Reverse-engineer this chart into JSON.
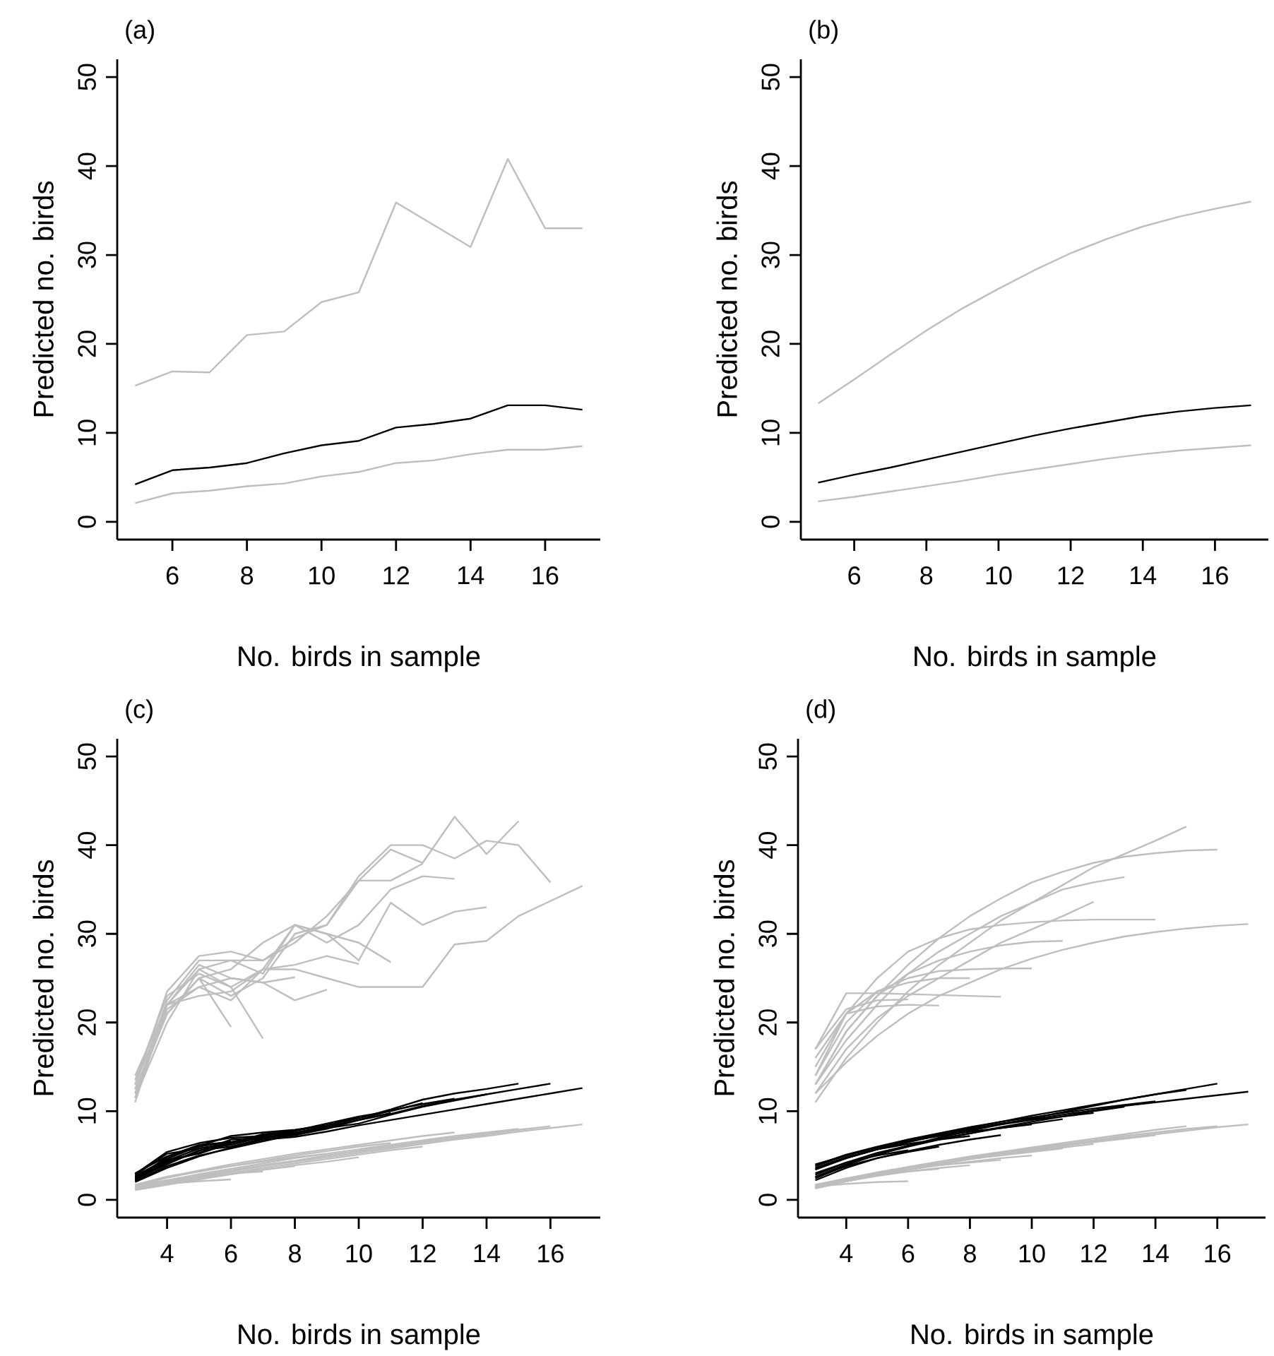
{
  "chart_data": [
    {
      "type": "line",
      "title": "(a)",
      "xlabel": "No. birds in sample",
      "ylabel": "Predicted no. birds",
      "xlim": [
        4.52,
        17.48
      ],
      "ylim": [
        -2,
        52
      ],
      "xticks": [
        6,
        8,
        10,
        12,
        14,
        16
      ],
      "yticks": [
        0,
        10,
        20,
        30,
        40,
        50
      ],
      "x": [
        5,
        6,
        7,
        8,
        9,
        10,
        11,
        12,
        13,
        14,
        15,
        16,
        17
      ],
      "series": [
        {
          "color": "#bebebe",
          "values": [
            15.3,
            16.9,
            16.8,
            21.0,
            21.4,
            24.7,
            25.8,
            35.9,
            33.4,
            30.9,
            40.8,
            33.0,
            33.0
          ]
        },
        {
          "color": "#000000",
          "values": [
            4.2,
            5.8,
            6.1,
            6.6,
            7.7,
            8.6,
            9.1,
            10.6,
            11.0,
            11.6,
            13.1,
            13.1,
            12.6
          ]
        },
        {
          "color": "#bebebe",
          "values": [
            2.1,
            3.2,
            3.5,
            4.0,
            4.3,
            5.1,
            5.6,
            6.6,
            6.9,
            7.6,
            8.1,
            8.1,
            8.5
          ]
        }
      ]
    },
    {
      "type": "line",
      "title": "(b)",
      "xlabel": "No. birds in sample",
      "ylabel": "Predicted no. birds",
      "xlim": [
        4.52,
        17.48
      ],
      "ylim": [
        -2,
        52
      ],
      "xticks": [
        6,
        8,
        10,
        12,
        14,
        16
      ],
      "yticks": [
        0,
        10,
        20,
        30,
        40,
        50
      ],
      "x": [
        5,
        6,
        7,
        8,
        9,
        10,
        11,
        12,
        13,
        14,
        15,
        16,
        17
      ],
      "series": [
        {
          "color": "#bebebe",
          "values": [
            13.3,
            16.0,
            18.8,
            21.5,
            24.0,
            26.2,
            28.3,
            30.2,
            31.8,
            33.2,
            34.3,
            35.2,
            36.0
          ]
        },
        {
          "color": "#000000",
          "values": [
            4.4,
            5.3,
            6.1,
            7.0,
            7.9,
            8.8,
            9.7,
            10.5,
            11.2,
            11.9,
            12.4,
            12.8,
            13.1
          ]
        },
        {
          "color": "#bebebe",
          "values": [
            2.3,
            2.8,
            3.4,
            4.0,
            4.6,
            5.3,
            5.9,
            6.5,
            7.1,
            7.6,
            8.0,
            8.3,
            8.6
          ]
        }
      ]
    },
    {
      "type": "line",
      "title": "(c)",
      "xlabel": "No. birds in sample",
      "ylabel": "Predicted no. birds",
      "xlim": [
        2.44,
        17.56
      ],
      "ylim": [
        -2,
        52
      ],
      "xticks": [
        4,
        6,
        8,
        10,
        12,
        14,
        16
      ],
      "yticks": [
        0,
        10,
        20,
        30,
        40,
        50
      ],
      "series": [
        {
          "color": "#bebebe",
          "x": [
            3,
            4,
            5,
            6
          ],
          "values": [
            12.5,
            21.0,
            25.0,
            19.5
          ]
        },
        {
          "color": "#bebebe",
          "x": [
            3,
            4,
            5,
            6,
            7
          ],
          "values": [
            11.5,
            20.0,
            26.0,
            24.0,
            18.2
          ]
        },
        {
          "color": "#bebebe",
          "x": [
            3,
            4,
            5,
            6,
            7,
            8
          ],
          "values": [
            13.0,
            22.0,
            26.5,
            25.0,
            24.5,
            25.1
          ]
        },
        {
          "color": "#bebebe",
          "x": [
            3,
            4,
            5,
            6,
            7,
            8,
            9
          ],
          "values": [
            12.0,
            21.5,
            24.0,
            25.0,
            24.5,
            22.5,
            23.7
          ]
        },
        {
          "color": "#bebebe",
          "x": [
            3,
            4,
            5,
            6,
            7,
            8,
            9,
            10
          ],
          "values": [
            13.5,
            23.0,
            25.5,
            24.0,
            26.0,
            26.5,
            27.5,
            26.6
          ]
        },
        {
          "color": "#bebebe",
          "x": [
            3,
            4,
            5,
            6,
            7,
            8,
            9,
            10,
            11
          ],
          "values": [
            12.0,
            22.5,
            27.0,
            27.0,
            25.5,
            31.0,
            30.0,
            29.0,
            26.8
          ]
        },
        {
          "color": "#bebebe",
          "x": [
            3,
            4,
            5,
            6,
            7,
            8,
            9,
            10,
            11,
            12
          ],
          "values": [
            13.0,
            23.5,
            27.5,
            28.0,
            27.0,
            29.5,
            31.0,
            36.0,
            36.0,
            37.9
          ]
        },
        {
          "color": "#bebebe",
          "x": [
            3,
            4,
            5,
            6,
            7,
            8,
            9,
            10,
            11,
            12,
            13
          ],
          "values": [
            12.5,
            21.0,
            25.0,
            26.0,
            29.0,
            31.0,
            29.0,
            31.0,
            35.0,
            36.5,
            36.2
          ]
        },
        {
          "color": "#bebebe",
          "x": [
            3,
            4,
            5,
            6,
            7,
            8,
            9,
            10,
            11,
            12,
            13,
            14
          ],
          "values": [
            11.0,
            22.0,
            24.0,
            22.5,
            26.0,
            31.0,
            30.0,
            27.0,
            33.5,
            31.0,
            32.5,
            33.0
          ]
        },
        {
          "color": "#bebebe",
          "x": [
            3,
            4,
            5,
            6,
            7,
            8,
            9,
            10,
            11,
            12,
            13,
            14,
            15
          ],
          "values": [
            14.0,
            22.0,
            26.0,
            27.0,
            27.0,
            29.0,
            32.0,
            36.0,
            39.5,
            38.0,
            43.2,
            39.0,
            42.7
          ]
        },
        {
          "color": "#bebebe",
          "x": [
            3,
            4,
            5,
            6,
            7,
            8,
            9,
            10,
            11,
            12,
            13,
            14,
            15,
            16
          ],
          "values": [
            12.0,
            21.0,
            25.0,
            23.0,
            25.0,
            30.0,
            31.0,
            36.5,
            40.0,
            40.0,
            38.5,
            40.5,
            40.0,
            35.8
          ]
        },
        {
          "color": "#bebebe",
          "x": [
            3,
            4,
            5,
            6,
            7,
            8,
            9,
            10,
            11,
            12,
            13,
            14,
            15,
            16,
            17
          ],
          "values": [
            11.5,
            22.0,
            23.0,
            23.5,
            26.0,
            26.0,
            25.0,
            24.0,
            24.0,
            24.0,
            28.8,
            29.2,
            32.0,
            33.7,
            35.4
          ]
        },
        {
          "color": "#000000",
          "x": [
            3,
            4,
            5,
            6
          ],
          "values": [
            2.4,
            4.8,
            6.0,
            6.6
          ]
        },
        {
          "color": "#000000",
          "x": [
            3,
            4,
            5,
            6,
            7
          ],
          "values": [
            2.8,
            5.2,
            5.8,
            6.4,
            7.2
          ]
        },
        {
          "color": "#000000",
          "x": [
            3,
            4,
            5,
            6,
            7,
            8
          ],
          "values": [
            2.2,
            4.2,
            5.5,
            6.8,
            7.0,
            7.6
          ]
        },
        {
          "color": "#000000",
          "x": [
            3,
            4,
            5,
            6,
            7,
            8,
            9
          ],
          "values": [
            3.0,
            4.9,
            6.2,
            6.5,
            7.3,
            7.6,
            8.2
          ]
        },
        {
          "color": "#000000",
          "x": [
            3,
            4,
            5,
            6,
            7,
            8,
            9,
            10
          ],
          "values": [
            2.6,
            4.5,
            5.2,
            6.4,
            7.4,
            7.8,
            8.4,
            9.3
          ]
        },
        {
          "color": "#000000",
          "x": [
            3,
            4,
            5,
            6,
            7,
            8,
            9,
            10,
            11
          ],
          "values": [
            2.3,
            4.0,
            5.6,
            6.0,
            6.9,
            7.5,
            8.3,
            9.0,
            9.8
          ]
        },
        {
          "color": "#000000",
          "x": [
            3,
            4,
            5,
            6,
            7,
            8,
            9,
            10,
            11,
            12
          ],
          "values": [
            2.9,
            5.4,
            6.4,
            7.0,
            7.2,
            7.8,
            8.6,
            9.4,
            10.0,
            10.9
          ]
        },
        {
          "color": "#000000",
          "x": [
            3,
            4,
            5,
            6,
            7,
            8,
            9,
            10,
            11,
            12,
            13
          ],
          "values": [
            2.5,
            4.4,
            5.8,
            6.2,
            7.1,
            7.3,
            8.0,
            9.0,
            10.1,
            10.8,
            11.4
          ]
        },
        {
          "color": "#000000",
          "x": [
            3,
            4,
            5,
            6,
            7,
            8,
            9,
            10,
            11,
            12,
            13,
            14
          ],
          "values": [
            2.1,
            3.8,
            5.0,
            5.8,
            6.6,
            7.4,
            8.1,
            8.6,
            9.6,
            10.5,
            11.2,
            11.9
          ]
        },
        {
          "color": "#000000",
          "x": [
            3,
            4,
            5,
            6,
            7,
            8,
            9,
            10,
            11,
            12,
            13,
            14,
            15
          ],
          "values": [
            2.7,
            4.6,
            6.1,
            7.2,
            7.6,
            7.9,
            8.4,
            9.2,
            10.2,
            11.3,
            12.0,
            12.5,
            13.1
          ]
        },
        {
          "color": "#000000",
          "x": [
            3,
            4,
            5,
            6,
            7,
            8,
            9,
            10,
            11,
            12,
            13,
            14,
            15,
            16
          ],
          "values": [
            2.4,
            4.3,
            5.3,
            6.5,
            7.0,
            7.3,
            8.2,
            9.0,
            9.7,
            10.6,
            11.3,
            11.9,
            12.5,
            13.1
          ]
        },
        {
          "color": "#000000",
          "x": [
            3,
            4,
            5,
            6,
            7,
            8,
            9,
            10,
            11,
            12,
            13,
            14,
            15,
            16,
            17
          ],
          "values": [
            2.0,
            3.6,
            4.9,
            5.9,
            6.8,
            7.1,
            7.7,
            8.4,
            9.0,
            9.6,
            10.2,
            10.8,
            11.4,
            12.0,
            12.6
          ]
        },
        {
          "color": "#bebebe",
          "x": [
            3,
            4,
            5,
            6
          ],
          "values": [
            1.4,
            1.8,
            2.1,
            2.3
          ]
        },
        {
          "color": "#bebebe",
          "x": [
            3,
            4,
            5,
            6,
            7
          ],
          "values": [
            1.6,
            2.2,
            2.6,
            3.0,
            3.2
          ]
        },
        {
          "color": "#bebebe",
          "x": [
            3,
            4,
            5,
            6,
            7,
            8
          ],
          "values": [
            1.3,
            1.9,
            2.4,
            2.9,
            3.4,
            3.8
          ]
        },
        {
          "color": "#bebebe",
          "x": [
            3,
            4,
            5,
            6,
            7,
            8,
            9
          ],
          "values": [
            1.7,
            2.6,
            3.2,
            3.8,
            4.3,
            4.8,
            5.2
          ]
        },
        {
          "color": "#bebebe",
          "x": [
            3,
            4,
            5,
            6,
            7,
            8,
            9,
            10
          ],
          "values": [
            1.1,
            1.7,
            2.3,
            2.9,
            3.4,
            3.9,
            4.3,
            4.8
          ]
        },
        {
          "color": "#bebebe",
          "x": [
            3,
            4,
            5,
            6,
            7,
            8,
            9,
            10,
            11
          ],
          "values": [
            1.6,
            2.5,
            3.2,
            3.8,
            4.4,
            5.0,
            5.5,
            6.0,
            6.4
          ]
        },
        {
          "color": "#bebebe",
          "x": [
            3,
            4,
            5,
            6,
            7,
            8,
            9,
            10,
            11,
            12
          ],
          "values": [
            1.2,
            1.8,
            2.4,
            3.0,
            3.6,
            4.1,
            4.6,
            5.1,
            5.6,
            6.0
          ]
        },
        {
          "color": "#bebebe",
          "x": [
            3,
            4,
            5,
            6,
            7,
            8,
            9,
            10,
            11,
            12,
            13
          ],
          "values": [
            1.7,
            2.6,
            3.3,
            4.0,
            4.6,
            5.2,
            5.7,
            6.2,
            6.7,
            7.2,
            7.6
          ]
        },
        {
          "color": "#bebebe",
          "x": [
            3,
            4,
            5,
            6,
            7,
            8,
            9,
            10,
            11,
            12,
            13,
            14
          ],
          "values": [
            1.4,
            2.0,
            2.7,
            3.3,
            3.9,
            4.4,
            5.0,
            5.5,
            6.0,
            6.5,
            7.0,
            7.4
          ]
        },
        {
          "color": "#bebebe",
          "x": [
            3,
            4,
            5,
            6,
            7,
            8,
            9,
            10,
            11,
            12,
            13,
            14,
            15
          ],
          "values": [
            1.5,
            2.2,
            2.9,
            3.5,
            4.1,
            4.7,
            5.2,
            5.7,
            6.2,
            6.7,
            7.2,
            7.6,
            8.0
          ]
        },
        {
          "color": "#bebebe",
          "x": [
            3,
            4,
            5,
            6,
            7,
            8,
            9,
            10,
            11,
            12,
            13,
            14,
            15,
            16
          ],
          "values": [
            1.3,
            2.0,
            2.7,
            3.3,
            3.9,
            4.4,
            5.0,
            5.5,
            6.0,
            6.5,
            7.0,
            7.4,
            7.9,
            8.3
          ]
        },
        {
          "color": "#bebebe",
          "x": [
            3,
            4,
            5,
            6,
            7,
            8,
            9,
            10,
            11,
            12,
            13,
            14,
            15,
            16,
            17
          ],
          "values": [
            1.2,
            1.9,
            2.6,
            3.2,
            3.8,
            4.3,
            4.8,
            5.3,
            5.8,
            6.3,
            6.8,
            7.2,
            7.7,
            8.1,
            8.5
          ]
        }
      ]
    },
    {
      "type": "line",
      "title": "(d)",
      "xlabel": "No. birds in sample",
      "ylabel": "Predicted no. birds",
      "xlim": [
        2.44,
        17.56
      ],
      "ylim": [
        -2,
        52
      ],
      "xticks": [
        4,
        6,
        8,
        10,
        12,
        14,
        16
      ],
      "yticks": [
        0,
        10,
        20,
        30,
        40,
        50
      ],
      "series": [
        {
          "color": "#bebebe",
          "x": [
            3,
            4,
            5,
            6
          ],
          "values": [
            17.0,
            21.5,
            22.5,
            22.6
          ]
        },
        {
          "color": "#bebebe",
          "x": [
            3,
            4,
            5,
            6,
            7
          ],
          "values": [
            16.0,
            21.0,
            21.8,
            22.0,
            21.9
          ]
        },
        {
          "color": "#bebebe",
          "x": [
            3,
            4,
            5,
            6,
            7,
            8
          ],
          "values": [
            15.0,
            21.0,
            23.5,
            24.5,
            25.0,
            25.0
          ]
        },
        {
          "color": "#bebebe",
          "x": [
            3,
            4,
            5,
            6,
            7,
            8,
            9
          ],
          "values": [
            17.0,
            23.3,
            23.3,
            23.2,
            23.1,
            23.0,
            22.9
          ]
        },
        {
          "color": "#bebebe",
          "x": [
            3,
            4,
            5,
            6,
            7,
            8,
            9,
            10
          ],
          "values": [
            14.0,
            20.0,
            23.5,
            25.0,
            25.8,
            26.0,
            26.1,
            26.1
          ]
        },
        {
          "color": "#bebebe",
          "x": [
            3,
            4,
            5,
            6,
            7,
            8,
            9,
            10,
            11
          ],
          "values": [
            13.0,
            19.0,
            23.0,
            25.5,
            27.0,
            28.0,
            28.7,
            29.1,
            29.2
          ]
        },
        {
          "color": "#bebebe",
          "x": [
            3,
            4,
            5,
            6,
            7,
            8,
            9,
            10,
            11,
            12
          ],
          "values": [
            12.0,
            17.0,
            20.5,
            23.0,
            25.0,
            27.0,
            29.0,
            30.5,
            32.0,
            33.6
          ]
        },
        {
          "color": "#bebebe",
          "x": [
            3,
            4,
            5,
            6,
            7,
            8,
            9,
            10,
            11,
            12,
            13
          ],
          "values": [
            13.0,
            18.0,
            22.0,
            25.5,
            28.0,
            30.0,
            32.0,
            33.5,
            35.0,
            35.8,
            36.4
          ]
        },
        {
          "color": "#bebebe",
          "x": [
            3,
            4,
            5,
            6,
            7,
            8,
            9,
            10,
            11,
            12,
            13,
            14
          ],
          "values": [
            14.0,
            21.0,
            25.0,
            28.0,
            29.5,
            30.5,
            31.0,
            31.3,
            31.5,
            31.6,
            31.6,
            31.6
          ]
        },
        {
          "color": "#bebebe",
          "x": [
            3,
            4,
            5,
            6,
            7,
            8,
            9,
            10,
            11,
            12,
            13,
            14,
            15
          ],
          "values": [
            11.0,
            16.0,
            20.0,
            23.5,
            26.5,
            29.0,
            31.5,
            33.5,
            35.5,
            37.5,
            39.0,
            40.5,
            42.1
          ]
        },
        {
          "color": "#bebebe",
          "x": [
            3,
            4,
            5,
            6,
            7,
            8,
            9,
            10,
            11,
            12,
            13,
            14,
            15,
            16
          ],
          "values": [
            13.0,
            19.0,
            23.0,
            26.5,
            29.5,
            32.0,
            34.0,
            35.8,
            37.0,
            38.0,
            38.7,
            39.1,
            39.4,
            39.5
          ]
        },
        {
          "color": "#bebebe",
          "x": [
            3,
            4,
            5,
            6,
            7,
            8,
            9,
            10,
            11,
            12,
            13,
            14,
            15,
            16,
            17
          ],
          "values": [
            12.0,
            15.5,
            18.5,
            21.0,
            23.0,
            24.5,
            26.0,
            27.2,
            28.2,
            29.0,
            29.7,
            30.2,
            30.6,
            30.9,
            31.1
          ]
        },
        {
          "color": "#000000",
          "x": [
            3,
            4,
            5,
            6
          ],
          "values": [
            3.0,
            4.2,
            5.0,
            5.6
          ]
        },
        {
          "color": "#000000",
          "x": [
            3,
            4,
            5,
            6,
            7
          ],
          "values": [
            2.5,
            3.8,
            4.7,
            5.4,
            6.0
          ]
        },
        {
          "color": "#000000",
          "x": [
            3,
            4,
            5,
            6,
            7,
            8
          ],
          "values": [
            3.6,
            4.8,
            5.7,
            6.3,
            6.8,
            7.2
          ]
        },
        {
          "color": "#000000",
          "x": [
            3,
            4,
            5,
            6,
            7,
            8,
            9
          ],
          "values": [
            2.2,
            3.6,
            4.7,
            5.5,
            6.2,
            6.8,
            7.3
          ]
        },
        {
          "color": "#000000",
          "x": [
            3,
            4,
            5,
            6,
            7,
            8,
            9,
            10
          ],
          "values": [
            3.8,
            5.0,
            5.9,
            6.6,
            7.2,
            7.7,
            8.1,
            8.5
          ]
        },
        {
          "color": "#000000",
          "x": [
            3,
            4,
            5,
            6,
            7,
            8,
            9,
            10,
            11
          ],
          "values": [
            2.8,
            4.2,
            5.3,
            6.1,
            6.9,
            7.5,
            8.1,
            8.6,
            9.1
          ]
        },
        {
          "color": "#000000",
          "x": [
            3,
            4,
            5,
            6,
            7,
            8,
            9,
            10,
            11,
            12
          ],
          "values": [
            3.4,
            4.7,
            5.7,
            6.5,
            7.3,
            7.9,
            8.5,
            9.0,
            9.4,
            9.8
          ]
        },
        {
          "color": "#000000",
          "x": [
            3,
            4,
            5,
            6,
            7,
            8,
            9,
            10,
            11,
            12,
            13
          ],
          "values": [
            2.6,
            4.0,
            5.1,
            6.0,
            6.8,
            7.5,
            8.2,
            8.8,
            9.4,
            10.0,
            10.5
          ]
        },
        {
          "color": "#000000",
          "x": [
            3,
            4,
            5,
            6,
            7,
            8,
            9,
            10,
            11,
            12,
            13,
            14
          ],
          "values": [
            3.9,
            5.1,
            6.0,
            6.8,
            7.5,
            8.2,
            8.8,
            9.3,
            9.8,
            10.3,
            10.7,
            11.1
          ]
        },
        {
          "color": "#000000",
          "x": [
            3,
            4,
            5,
            6,
            7,
            8,
            9,
            10,
            11,
            12,
            13,
            14,
            15
          ],
          "values": [
            2.4,
            3.9,
            5.1,
            6.1,
            7.0,
            7.8,
            8.5,
            9.2,
            9.9,
            10.6,
            11.3,
            11.9,
            12.4
          ]
        },
        {
          "color": "#000000",
          "x": [
            3,
            4,
            5,
            6,
            7,
            8,
            9,
            10,
            11,
            12,
            13,
            14,
            15,
            16
          ],
          "values": [
            3.5,
            4.7,
            5.7,
            6.6,
            7.4,
            8.1,
            8.8,
            9.5,
            10.1,
            10.7,
            11.3,
            11.9,
            12.5,
            13.1
          ]
        },
        {
          "color": "#000000",
          "x": [
            3,
            4,
            5,
            6,
            7,
            8,
            9,
            10,
            11,
            12,
            13,
            14,
            15,
            16,
            17
          ],
          "values": [
            4.0,
            5.0,
            5.9,
            6.7,
            7.4,
            8.0,
            8.6,
            9.1,
            9.6,
            10.1,
            10.6,
            11.0,
            11.4,
            11.8,
            12.2
          ]
        },
        {
          "color": "#bebebe",
          "x": [
            3,
            4,
            5,
            6
          ],
          "values": [
            1.5,
            1.8,
            2.0,
            2.1
          ]
        },
        {
          "color": "#bebebe",
          "x": [
            3,
            4,
            5,
            6,
            7
          ],
          "values": [
            1.7,
            2.4,
            2.9,
            3.2,
            3.5
          ]
        },
        {
          "color": "#bebebe",
          "x": [
            3,
            4,
            5,
            6,
            7,
            8
          ],
          "values": [
            1.4,
            2.1,
            2.7,
            3.2,
            3.6,
            3.9
          ]
        },
        {
          "color": "#bebebe",
          "x": [
            3,
            4,
            5,
            6,
            7,
            8,
            9
          ],
          "values": [
            1.6,
            2.4,
            3.0,
            3.5,
            3.9,
            4.2,
            4.5
          ]
        },
        {
          "color": "#bebebe",
          "x": [
            3,
            4,
            5,
            6,
            7,
            8,
            9,
            10
          ],
          "values": [
            1.3,
            2.1,
            2.8,
            3.4,
            3.9,
            4.3,
            4.7,
            5.0
          ]
        },
        {
          "color": "#bebebe",
          "x": [
            3,
            4,
            5,
            6,
            7,
            8,
            9,
            10,
            11
          ],
          "values": [
            1.5,
            2.3,
            3.0,
            3.6,
            4.1,
            4.6,
            5.0,
            5.4,
            5.8
          ]
        },
        {
          "color": "#bebebe",
          "x": [
            3,
            4,
            5,
            6,
            7,
            8,
            9,
            10,
            11,
            12
          ],
          "values": [
            1.4,
            2.2,
            2.9,
            3.5,
            4.1,
            4.6,
            5.1,
            5.5,
            5.9,
            6.3
          ]
        },
        {
          "color": "#bebebe",
          "x": [
            3,
            4,
            5,
            6,
            7,
            8,
            9,
            10,
            11,
            12,
            13
          ],
          "values": [
            1.6,
            2.4,
            3.1,
            3.7,
            4.3,
            4.8,
            5.3,
            5.8,
            6.2,
            6.6,
            7.0
          ]
        },
        {
          "color": "#bebebe",
          "x": [
            3,
            4,
            5,
            6,
            7,
            8,
            9,
            10,
            11,
            12,
            13,
            14
          ],
          "values": [
            1.3,
            2.1,
            2.8,
            3.4,
            4.0,
            4.6,
            5.1,
            5.6,
            6.1,
            6.5,
            6.9,
            7.3
          ]
        },
        {
          "color": "#bebebe",
          "x": [
            3,
            4,
            5,
            6,
            7,
            8,
            9,
            10,
            11,
            12,
            13,
            14,
            15
          ],
          "values": [
            1.5,
            2.3,
            3.0,
            3.7,
            4.3,
            4.9,
            5.4,
            5.9,
            6.4,
            6.9,
            7.4,
            7.9,
            8.3
          ]
        },
        {
          "color": "#bebebe",
          "x": [
            3,
            4,
            5,
            6,
            7,
            8,
            9,
            10,
            11,
            12,
            13,
            14,
            15,
            16
          ],
          "values": [
            1.4,
            2.2,
            2.9,
            3.5,
            4.1,
            4.7,
            5.2,
            5.7,
            6.2,
            6.7,
            7.2,
            7.6,
            8.0,
            8.3
          ]
        },
        {
          "color": "#bebebe",
          "x": [
            3,
            4,
            5,
            6,
            7,
            8,
            9,
            10,
            11,
            12,
            13,
            14,
            15,
            16,
            17
          ],
          "values": [
            1.3,
            2.1,
            2.8,
            3.4,
            4.0,
            4.6,
            5.1,
            5.6,
            6.1,
            6.6,
            7.0,
            7.4,
            7.8,
            8.2,
            8.5
          ]
        }
      ]
    }
  ]
}
